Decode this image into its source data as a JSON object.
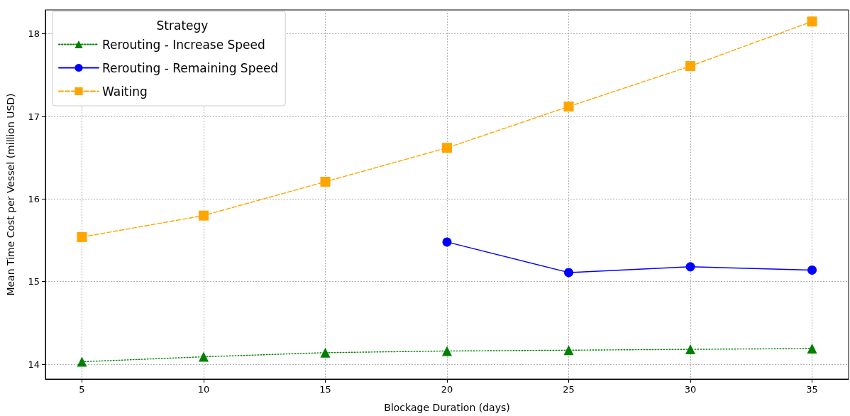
{
  "chart_data": {
    "type": "line",
    "xlabel": "Blockage Duration (days)",
    "ylabel": "Mean Time Cost per Vessel (million USD)",
    "legend_title": "Strategy",
    "x": [
      5,
      10,
      15,
      20,
      25,
      30,
      35
    ],
    "series": [
      {
        "name": "Rerouting - Increase Speed",
        "color": "#008000",
        "marker": "triangle",
        "line_style": "dotted",
        "values": [
          14.03,
          14.09,
          14.14,
          14.16,
          14.17,
          14.18,
          14.19
        ]
      },
      {
        "name": "Rerouting - Remaining Speed",
        "color": "#0000ff",
        "marker": "circle",
        "line_style": "solid",
        "x": [
          20,
          25,
          30,
          35
        ],
        "values": [
          15.48,
          15.11,
          15.18,
          15.14
        ]
      },
      {
        "name": "Waiting",
        "color": "#ffa500",
        "marker": "square",
        "line_style": "dashed",
        "values": [
          15.54,
          15.8,
          16.21,
          16.62,
          17.12,
          17.61,
          18.15
        ]
      }
    ],
    "xlim": [
      3.5,
      36.5
    ],
    "xticks": [
      5,
      10,
      15,
      20,
      25,
      30,
      35
    ],
    "ylim": [
      13.82,
      18.29
    ],
    "yticks": [
      14,
      15,
      16,
      17,
      18
    ],
    "grid": true,
    "legend": "top left"
  }
}
